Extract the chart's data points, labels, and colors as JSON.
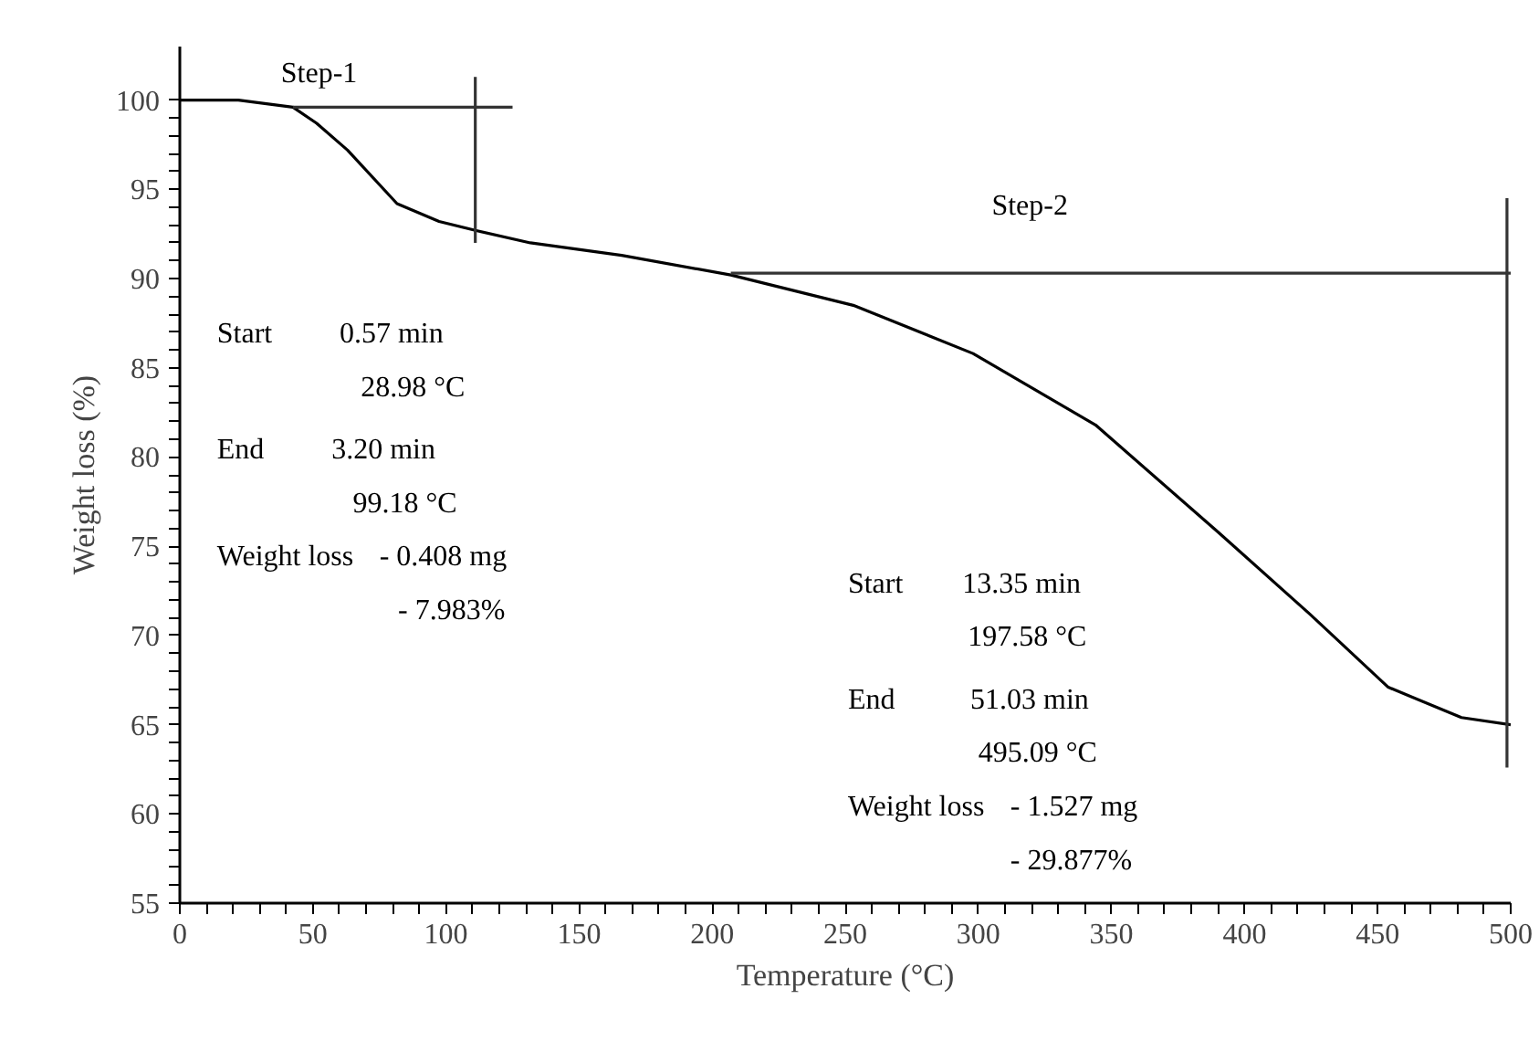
{
  "chart_data": {
    "type": "line",
    "xlabel": "Temperature (°C)",
    "ylabel": "Weight loss (%)",
    "xlim": [
      0,
      500
    ],
    "ylim": [
      55,
      103
    ],
    "xticks": [
      0,
      {
        "value": 10,
        "label": null
      },
      {
        "value": 20,
        "label": null
      },
      {
        "value": 30,
        "label": null
      },
      {
        "value": 40,
        "label": null
      },
      50,
      {
        "value": 60,
        "label": null
      },
      {
        "value": 70,
        "label": null
      },
      {
        "value": 80,
        "label": null
      },
      {
        "value": 90,
        "label": null
      },
      100,
      {
        "value": 110,
        "label": null
      },
      {
        "value": 120,
        "label": null
      },
      {
        "value": 130,
        "label": null
      },
      {
        "value": 140,
        "label": null
      },
      150,
      {
        "value": 160,
        "label": null
      },
      {
        "value": 170,
        "label": null
      },
      {
        "value": 180,
        "label": null
      },
      {
        "value": 190,
        "label": null
      },
      200,
      {
        "value": 210,
        "label": null
      },
      {
        "value": 220,
        "label": null
      },
      {
        "value": 230,
        "label": null
      },
      {
        "value": 240,
        "label": null
      },
      250,
      {
        "value": 260,
        "label": null
      },
      {
        "value": 270,
        "label": null
      },
      {
        "value": 280,
        "label": null
      },
      {
        "value": 290,
        "label": null
      },
      300,
      {
        "value": 310,
        "label": null
      },
      {
        "value": 320,
        "label": null
      },
      {
        "value": 330,
        "label": null
      },
      {
        "value": 340,
        "label": null
      },
      350,
      {
        "value": 360,
        "label": null
      },
      {
        "value": 370,
        "label": null
      },
      {
        "value": 380,
        "label": null
      },
      {
        "value": 390,
        "label": null
      },
      400,
      {
        "value": 410,
        "label": null
      },
      {
        "value": 420,
        "label": null
      },
      {
        "value": 430,
        "label": null
      },
      {
        "value": 440,
        "label": null
      },
      450,
      {
        "value": 460,
        "label": null
      },
      {
        "value": 470,
        "label": null
      },
      {
        "value": 480,
        "label": null
      },
      {
        "value": 490,
        "label": null
      },
      500
    ],
    "yticks": [
      55,
      {
        "value": 56,
        "label": null
      },
      {
        "value": 57,
        "label": null
      },
      {
        "value": 58,
        "label": null
      },
      {
        "value": 59,
        "label": null
      },
      60,
      {
        "value": 61,
        "label": null
      },
      {
        "value": 62,
        "label": null
      },
      {
        "value": 63,
        "label": null
      },
      {
        "value": 64,
        "label": null
      },
      65,
      {
        "value": 66,
        "label": null
      },
      {
        "value": 67,
        "label": null
      },
      {
        "value": 68,
        "label": null
      },
      {
        "value": 69,
        "label": null
      },
      70,
      {
        "value": 71,
        "label": null
      },
      {
        "value": 72,
        "label": null
      },
      {
        "value": 73,
        "label": null
      },
      {
        "value": 74,
        "label": null
      },
      75,
      {
        "value": 76,
        "label": null
      },
      {
        "value": 77,
        "label": null
      },
      {
        "value": 78,
        "label": null
      },
      {
        "value": 79,
        "label": null
      },
      80,
      {
        "value": 81,
        "label": null
      },
      {
        "value": 82,
        "label": null
      },
      {
        "value": 83,
        "label": null
      },
      {
        "value": 84,
        "label": null
      },
      85,
      {
        "value": 86,
        "label": null
      },
      {
        "value": 87,
        "label": null
      },
      {
        "value": 88,
        "label": null
      },
      {
        "value": 89,
        "label": null
      },
      90,
      {
        "value": 91,
        "label": null
      },
      {
        "value": 92,
        "label": null
      },
      {
        "value": 93,
        "label": null
      },
      {
        "value": 94,
        "label": null
      },
      95,
      {
        "value": 96,
        "label": null
      },
      {
        "value": 97,
        "label": null
      },
      {
        "value": 98,
        "label": null
      },
      {
        "value": 99,
        "label": null
      },
      100
    ],
    "grid": false,
    "series": [
      {
        "color": "#000000",
        "x": [
          0,
          22,
          42.5,
          51.4,
          63,
          81.6,
          97.4,
          111,
          131.7,
          166,
          207,
          253,
          298,
          344,
          390,
          424.5,
          454,
          481.5,
          500
        ],
        "values": [
          100,
          100,
          99.6,
          98.7,
          97.2,
          94.2,
          93.2,
          92.7,
          92,
          91.3,
          90.2,
          88.5,
          85.8,
          81.8,
          75.8,
          71.2,
          67.1,
          65.4,
          65
        ]
      },
      {
        "color": "#333333",
        "x": [
          42.5,
          125
        ],
        "values": [
          99.6,
          99.6
        ]
      },
      {
        "color": "#333333",
        "x": [
          111,
          111
        ],
        "values": [
          101.3,
          92
        ]
      },
      {
        "color": "#333333",
        "x": [
          207,
          500
        ],
        "values": [
          90.3,
          90.3
        ]
      },
      {
        "color": "#333333",
        "x": [
          498.6,
          498.6
        ],
        "values": [
          94.5,
          62.6
        ]
      }
    ],
    "annotations": [
      "Step-1",
      "Step-2",
      "Start",
      "0.57  min",
      "28.98  °C",
      "End",
      "3.20  min",
      "99.18  °C",
      "Weight loss",
      "- 0.408  mg",
      "- 7.983%",
      "Start",
      "13.35  min",
      "197.58  °C",
      "End",
      "51.03  min",
      "495.09  °C",
      "Weight loss",
      "- 1.527  mg",
      "-  29.877%"
    ]
  }
}
